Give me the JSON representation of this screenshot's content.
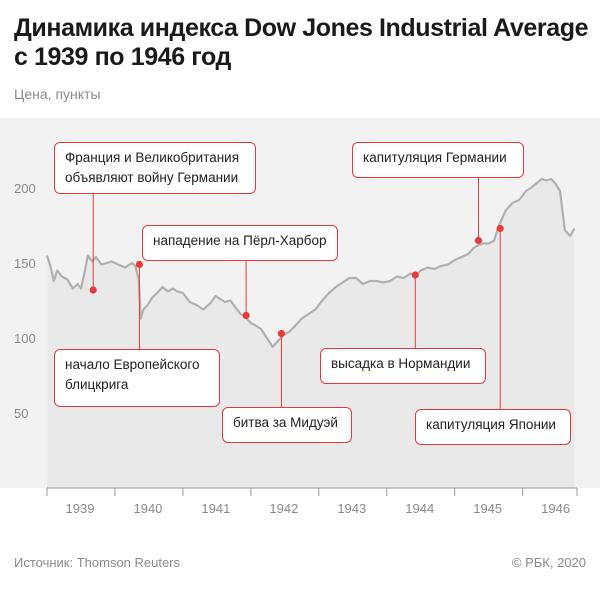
{
  "title": "Динамика индекса Dow Jones Industrial Average с 1939 по 1946 год",
  "unit_label": "Цена, пункты",
  "source": "Источник: Thomson Reuters",
  "copyright": "© РБК, 2020",
  "colors": {
    "line": "#b0b0b0",
    "area": "#f2f2f2",
    "accent": "#e83a3a",
    "axis": "#9a9a9a"
  },
  "chart_data": {
    "type": "area",
    "title": "Динамика индекса Dow Jones Industrial Average с 1939 по 1946 год",
    "ylabel": "Цена, пункты",
    "xlabel": "",
    "xlim": [
      1939,
      1946.8
    ],
    "ylim": [
      0,
      240
    ],
    "x_ticks": [
      1939,
      1940,
      1941,
      1942,
      1943,
      1944,
      1945,
      1946
    ],
    "y_ticks": [
      50,
      100,
      150,
      200
    ],
    "grid": false,
    "series": [
      {
        "x": [
          1939.0,
          1939.05,
          1939.1,
          1939.15,
          1939.22,
          1939.3,
          1939.38,
          1939.45,
          1939.5,
          1939.55,
          1939.6,
          1939.67,
          1939.72,
          1939.8,
          1939.88,
          1939.95,
          1940.05,
          1940.15,
          1940.25,
          1940.3,
          1940.35,
          1940.38,
          1940.42,
          1940.48,
          1940.55,
          1940.62,
          1940.7,
          1940.78,
          1940.85,
          1940.92,
          1941.0,
          1941.1,
          1941.2,
          1941.3,
          1941.4,
          1941.48,
          1941.55,
          1941.62,
          1941.7,
          1941.78,
          1941.85,
          1941.92,
          1942.0,
          1942.08,
          1942.15,
          1942.22,
          1942.28,
          1942.32,
          1942.4,
          1942.48,
          1942.56,
          1942.65,
          1942.75,
          1942.85,
          1942.95,
          1943.05,
          1943.15,
          1943.25,
          1943.35,
          1943.45,
          1943.55,
          1943.65,
          1943.75,
          1943.85,
          1943.95,
          1944.05,
          1944.15,
          1944.25,
          1944.35,
          1944.43,
          1944.5,
          1944.6,
          1944.7,
          1944.8,
          1944.9,
          1945.0,
          1945.1,
          1945.2,
          1945.28,
          1945.35,
          1945.42,
          1945.5,
          1945.58,
          1945.65,
          1945.75,
          1945.85,
          1945.95,
          1946.05,
          1946.12,
          1946.2,
          1946.28,
          1946.35,
          1946.42,
          1946.48,
          1946.55,
          1946.62,
          1946.7,
          1946.76
        ],
        "values": [
          155,
          148,
          138,
          145,
          141,
          139,
          133,
          136,
          133,
          143,
          155,
          151,
          154,
          149,
          150,
          151,
          149,
          147,
          150,
          148,
          139,
          113,
          119,
          122,
          127,
          130,
          134,
          131,
          133,
          131,
          130,
          124,
          122,
          119,
          123,
          128,
          126,
          124,
          125,
          120,
          116,
          114,
          110,
          108,
          106,
          101,
          97,
          94,
          98,
          102,
          104,
          108,
          113,
          116,
          119,
          125,
          130,
          134,
          137,
          140,
          140,
          136,
          138,
          138,
          137,
          138,
          141,
          140,
          143,
          142,
          145,
          147,
          146,
          148,
          149,
          152,
          154,
          156,
          160,
          162,
          163,
          163,
          165,
          175,
          185,
          190,
          192,
          198,
          200,
          203,
          206,
          205,
          206,
          203,
          198,
          172,
          168,
          173
        ]
      }
    ],
    "annotations": [
      {
        "label": "Франция и Великобритания\nобъявляют войну Германии",
        "x": 1939.68,
        "y": 132
      },
      {
        "label": "начало Европейского\nблицкрига",
        "x": 1940.36,
        "y": 149
      },
      {
        "label": "нападение на Пёрл-Харбор",
        "x": 1941.93,
        "y": 115
      },
      {
        "label": "битва за Мидуэй",
        "x": 1942.45,
        "y": 103
      },
      {
        "label": "высадка в Нормандии",
        "x": 1944.42,
        "y": 142
      },
      {
        "label": "капитуляция Германии",
        "x": 1945.35,
        "y": 165
      },
      {
        "label": "капитуляция Японии",
        "x": 1945.67,
        "y": 173
      }
    ]
  }
}
